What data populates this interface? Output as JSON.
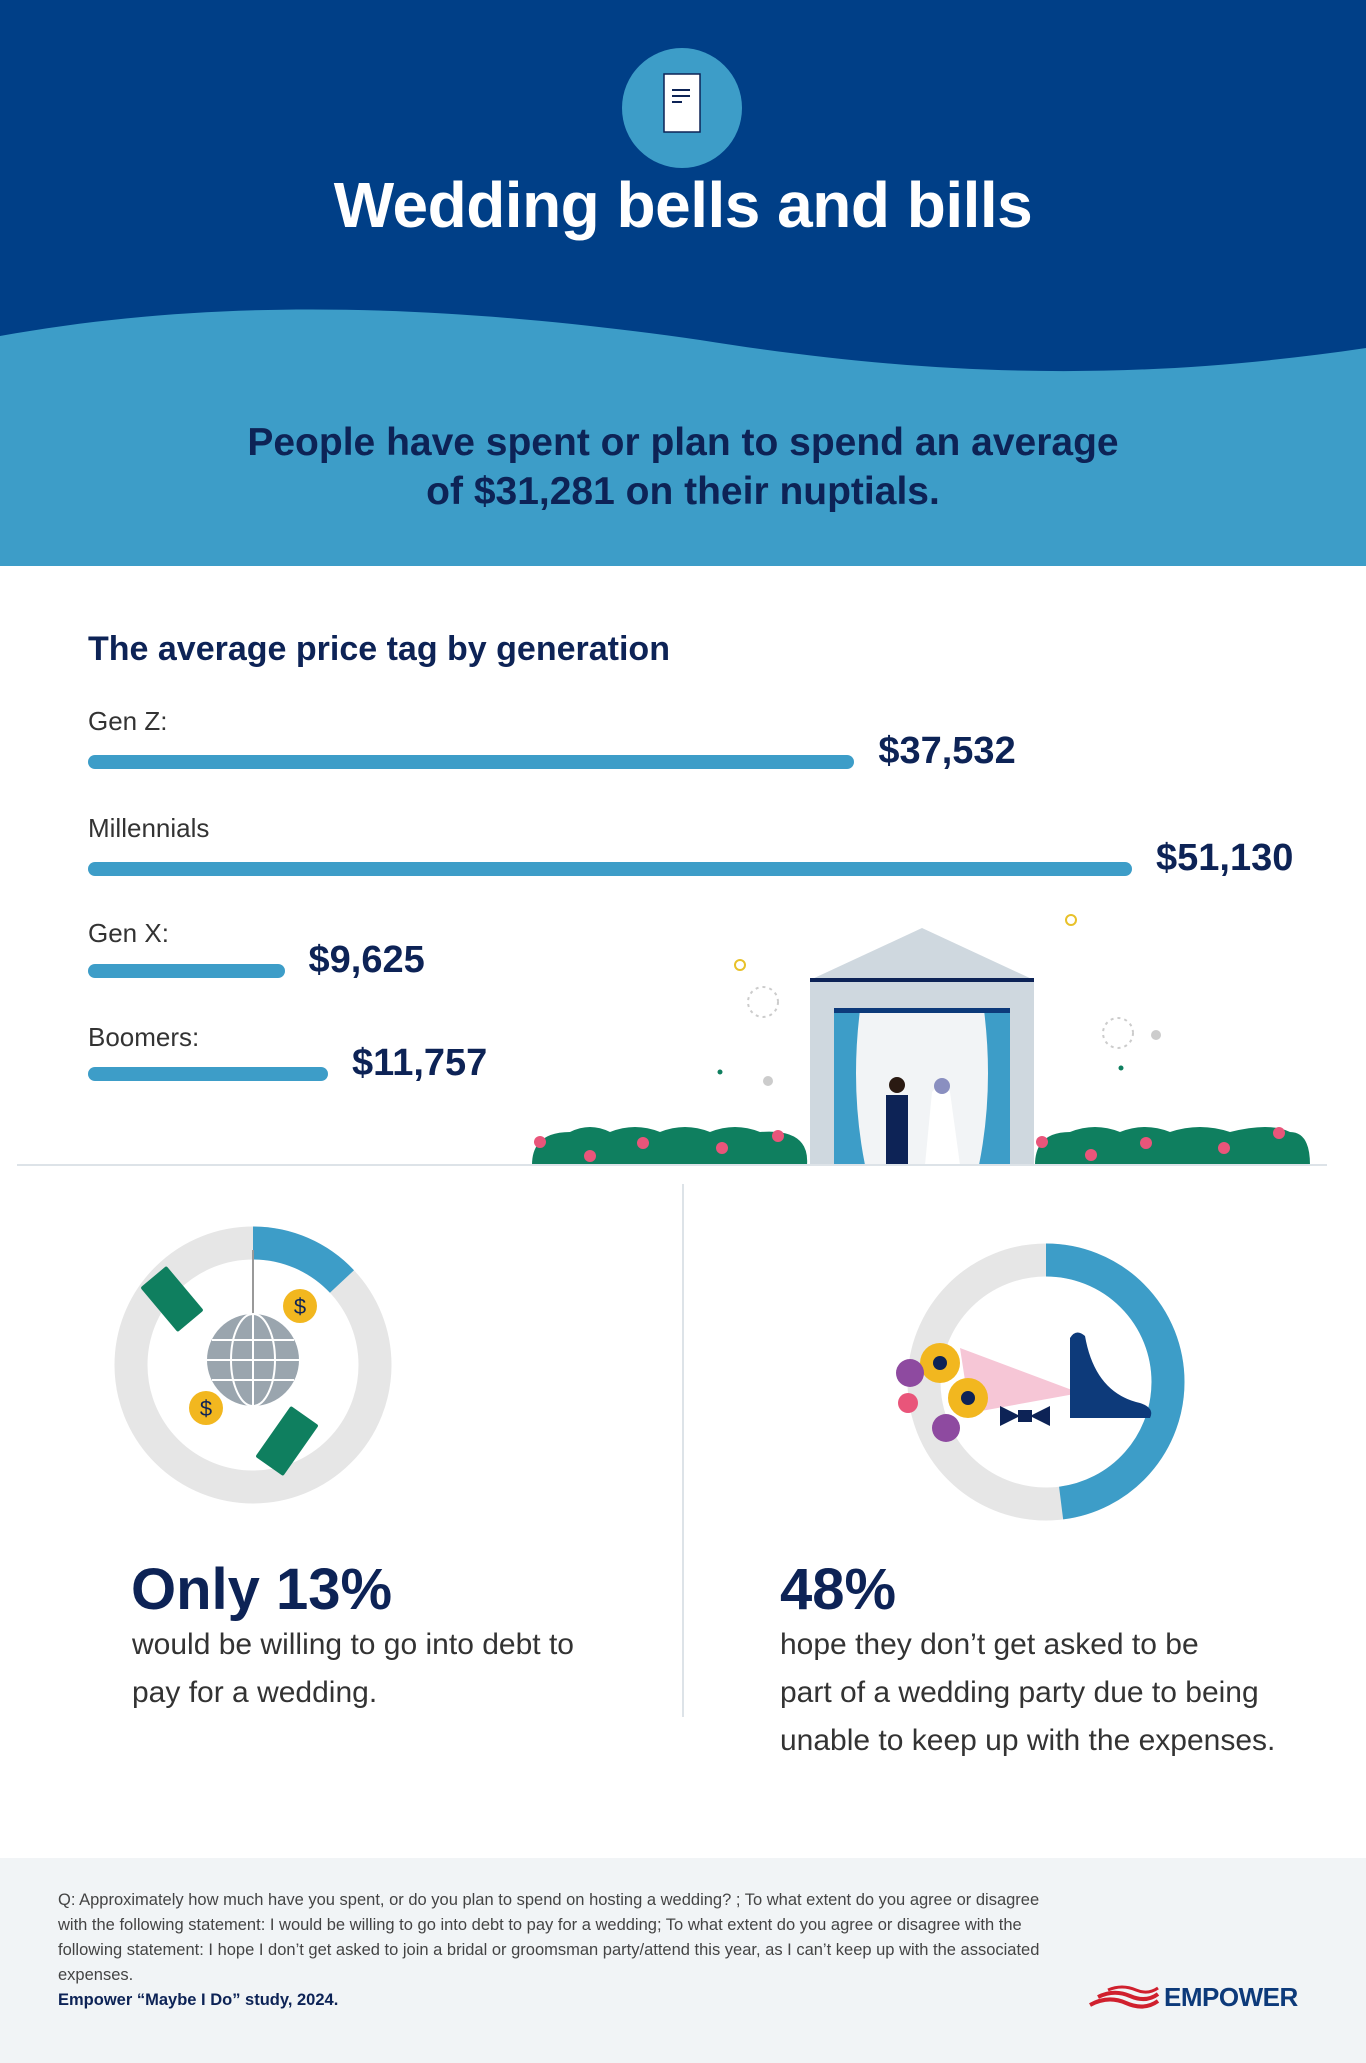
{
  "header": {
    "icon": "scroll-icon",
    "title": "Wedding bells and bills",
    "subtitle_line1": "People have spent or plan to spend an average",
    "subtitle_line2": "of $31,281 on their nuptials."
  },
  "colors": {
    "dark_blue": "#003f87",
    "light_blue": "#3d9dc8",
    "navy_text": "#0d2356",
    "footer_bg": "#f1f4f6",
    "donut_gray": "#e6e6e6",
    "bush_green": "#0f7f5f"
  },
  "chart_data": {
    "type": "bar",
    "title": "The average price tag by generation",
    "orientation": "horizontal",
    "categories": [
      "Gen Z:",
      "Millennials",
      "Gen X:",
      "Boomers:"
    ],
    "values": [
      37532,
      51130,
      9625,
      11757
    ],
    "value_labels": [
      "$37,532",
      "$51,130",
      "$9,625",
      "$11,757"
    ]
  },
  "stats": [
    {
      "headline": "Only 13%",
      "percent": 13,
      "line1": "would be willing to go into debt to",
      "line2": "pay for a wedding.",
      "icon": "disco-ball-money-icon"
    },
    {
      "headline": "48%",
      "percent": 48,
      "line1": "hope they don’t get asked to be",
      "line2": "part of a wedding party due to being",
      "line3": "unable to keep up with the expenses.",
      "icon": "bouquet-shoe-bowtie-icon"
    }
  ],
  "footer": {
    "question": "Q: Approximately how much have you spent, or do you plan to spend on hosting a wedding? ; To what extent do you agree or disagree with the following statement: I would be willing to go into debt to pay for a wedding; To what extent do you agree or disagree with the following statement: I hope I don’t get asked to join a bridal or groomsman party/attend this year, as I can’t keep up with the associated expenses.",
    "source": "Empower “Maybe I Do” study, 2024.",
    "logo_text": "EMPOWER"
  }
}
